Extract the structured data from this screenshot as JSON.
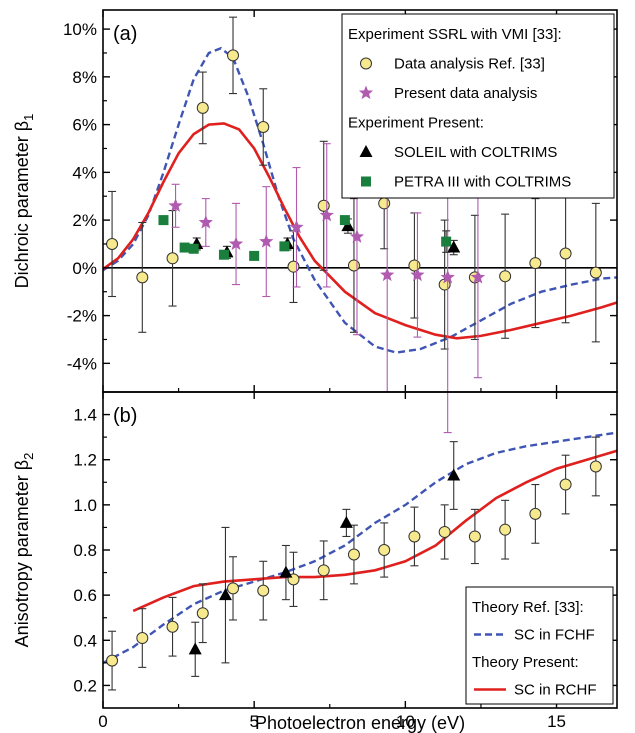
{
  "chart_data": [
    {
      "id": "panel_a",
      "type": "line",
      "panel_label": "(a)",
      "ylabel": "Dichroic parameter β₁",
      "ylabel_main": "Dichroic parameter β",
      "ylabel_sub": "1",
      "xlim": [
        0,
        17
      ],
      "ylim": [
        -5.2,
        10.8
      ],
      "y_format": "percent",
      "x_ticks": [
        0,
        5,
        10,
        15
      ],
      "y_ticks": [
        -4,
        -2,
        0,
        2,
        4,
        6,
        8,
        10
      ],
      "y_tick_labels": [
        "-4%",
        "-2%",
        "0%",
        "2%",
        "4%",
        "6%",
        "8%",
        "10%"
      ],
      "zero_line": true,
      "legend": {
        "placement": "top-right",
        "entries": [
          {
            "kind": "header",
            "label": "Experiment SSRL with VMI [33]:"
          },
          {
            "kind": "marker",
            "marker": "circle",
            "color": "#f7e98e",
            "label": "Data analysis Ref. [33]"
          },
          {
            "kind": "marker",
            "marker": "star",
            "color": "#b05ab0",
            "label": "Present data analysis"
          },
          {
            "kind": "header",
            "label": "Experiment Present:"
          },
          {
            "kind": "marker",
            "marker": "triangle",
            "color": "#000000",
            "label": "SOLEIL with COLTRIMS"
          },
          {
            "kind": "marker",
            "marker": "square",
            "color": "#1a7f3c",
            "label": "PETRA III with COLTRIMS"
          }
        ]
      },
      "series": [
        {
          "name": "SC in FCHF",
          "style": "dashed",
          "color": "#3f55b3",
          "x": [
            0,
            0.5,
            1,
            1.5,
            2,
            2.5,
            3,
            3.5,
            3.9,
            4.3,
            4.8,
            5.3,
            5.8,
            6.3,
            7,
            8,
            9,
            9.7,
            10.5,
            11.5,
            12.5,
            13.5,
            14.5,
            15.5,
            16.5,
            17
          ],
          "y": [
            -0.1,
            0.3,
            1.0,
            2.2,
            4.0,
            6.0,
            7.9,
            9.0,
            9.2,
            8.8,
            7.2,
            5.2,
            3.0,
            1.2,
            -0.5,
            -2.3,
            -3.3,
            -3.55,
            -3.4,
            -2.9,
            -2.2,
            -1.5,
            -1.0,
            -0.7,
            -0.45,
            -0.4
          ]
        },
        {
          "name": "SC in RCHF",
          "style": "solid",
          "color": "#e0201e",
          "x": [
            0,
            0.5,
            1,
            1.5,
            2,
            2.5,
            3,
            3.5,
            4.0,
            4.5,
            5,
            5.5,
            6,
            6.5,
            7,
            8,
            9,
            10,
            11,
            11.7,
            12.5,
            13.5,
            14.5,
            15.5,
            16.5,
            17
          ],
          "y": [
            -0.05,
            0.4,
            1.2,
            2.3,
            3.6,
            4.8,
            5.6,
            6.0,
            6.05,
            5.8,
            5.0,
            3.8,
            2.5,
            1.3,
            0.3,
            -1.0,
            -1.9,
            -2.4,
            -2.8,
            -2.95,
            -2.85,
            -2.6,
            -2.3,
            -2.0,
            -1.65,
            -1.45
          ]
        }
      ],
      "points": [
        {
          "name": "Data analysis Ref. [33]",
          "marker": "circle",
          "color": "#f7e98e",
          "x": [
            0.3,
            1.3,
            2.3,
            3.3,
            4.3,
            5.3,
            6.3,
            7.3,
            8.3,
            9.3,
            10.3,
            11.3,
            12.3,
            13.3,
            14.3,
            15.3,
            16.3
          ],
          "y": [
            1.0,
            -0.4,
            0.4,
            6.7,
            8.9,
            5.9,
            0.05,
            2.6,
            0.1,
            2.7,
            0.1,
            -0.7,
            -0.4,
            -0.35,
            0.2,
            0.6,
            -0.2
          ],
          "err": [
            2.2,
            2.3,
            2.0,
            1.5,
            1.6,
            1.6,
            1.5,
            2.7,
            2.8,
            1.9,
            2.2,
            2.7,
            2.6,
            2.6,
            2.7,
            2.9,
            2.9
          ]
        },
        {
          "name": "Present data analysis",
          "marker": "star",
          "color": "#b05ab0",
          "x": [
            2.4,
            3.4,
            4.4,
            5.4,
            6.4,
            7.4,
            8.4,
            9.4,
            10.4,
            11.4,
            12.4
          ],
          "y": [
            2.6,
            1.9,
            1.0,
            1.1,
            1.7,
            2.2,
            1.3,
            -0.3,
            -0.3,
            -0.4,
            -0.4
          ],
          "err": [
            0.9,
            1.0,
            1.7,
            2.3,
            2.5,
            3.0,
            4.1,
            4.9,
            2.6,
            6.5,
            4.2
          ]
        },
        {
          "name": "SOLEIL with COLTRIMS",
          "marker": "triangle",
          "color": "#000000",
          "x": [
            3.1,
            4.1,
            6.1,
            8.1,
            11.6
          ],
          "y": [
            1.0,
            0.65,
            1.0,
            1.75,
            0.85
          ],
          "err": [
            0.25,
            0.25,
            0.25,
            0.3,
            0.3
          ]
        },
        {
          "name": "PETRA III with COLTRIMS",
          "marker": "square",
          "color": "#1a7f3c",
          "x": [
            2.0,
            2.7,
            3.0,
            4.0,
            5.0,
            6.0,
            8.0,
            11.35
          ],
          "y": [
            2.0,
            0.85,
            0.8,
            0.55,
            0.5,
            0.9,
            2.0,
            1.1
          ],
          "err": [
            0,
            0,
            0,
            0,
            0,
            0,
            0,
            0.45
          ]
        }
      ]
    },
    {
      "id": "panel_b",
      "type": "line",
      "panel_label": "(b)",
      "ylabel": "Anisotropy parameter β₂",
      "ylabel_main": "Anisotropy parameter β",
      "ylabel_sub": "2",
      "xlabel": "Photoelectron energy (eV)",
      "xlim": [
        0,
        17
      ],
      "ylim": [
        0.1,
        1.5
      ],
      "x_ticks": [
        0,
        5,
        10,
        15
      ],
      "y_ticks": [
        0.2,
        0.4,
        0.6,
        0.8,
        1.0,
        1.2,
        1.4
      ],
      "y_tick_labels": [
        "0.2",
        "0.4",
        "0.6",
        "0.8",
        "1.0",
        "1.2",
        "1.4"
      ],
      "legend": {
        "placement": "bottom-right",
        "entries": [
          {
            "kind": "header",
            "label": "Theory Ref. [33]:"
          },
          {
            "kind": "line",
            "style": "dashed",
            "color": "#3f55b3",
            "label": "SC in FCHF"
          },
          {
            "kind": "header",
            "label": "Theory Present:"
          },
          {
            "kind": "line",
            "style": "solid",
            "color": "#e0201e",
            "label": "SC in RCHF"
          }
        ]
      },
      "series": [
        {
          "name": "SC in FCHF",
          "style": "dashed",
          "color": "#3f55b3",
          "x": [
            0,
            1,
            2,
            3,
            4,
            5,
            6,
            7,
            8,
            9,
            10,
            11,
            12,
            13,
            14,
            15,
            16,
            17
          ],
          "y": [
            0.3,
            0.37,
            0.47,
            0.56,
            0.62,
            0.66,
            0.7,
            0.75,
            0.82,
            0.92,
            1.0,
            1.1,
            1.18,
            1.23,
            1.26,
            1.28,
            1.3,
            1.32
          ]
        },
        {
          "name": "SC in RCHF",
          "style": "solid",
          "color": "#e0201e",
          "x": [
            1.0,
            1.5,
            2,
            3,
            4,
            5,
            6,
            7,
            8,
            9,
            10,
            11,
            12,
            13,
            14,
            15,
            16,
            17
          ],
          "y": [
            0.53,
            0.56,
            0.59,
            0.64,
            0.66,
            0.67,
            0.68,
            0.68,
            0.69,
            0.71,
            0.75,
            0.82,
            0.93,
            1.03,
            1.1,
            1.16,
            1.2,
            1.24
          ]
        }
      ],
      "points": [
        {
          "name": "Data analysis Ref. [33]",
          "marker": "circle",
          "color": "#f7e98e",
          "x": [
            0.3,
            1.3,
            2.3,
            3.3,
            4.3,
            5.3,
            6.3,
            7.3,
            8.3,
            9.3,
            10.3,
            11.3,
            12.3,
            13.3,
            14.3,
            15.3,
            16.3
          ],
          "y": [
            0.31,
            0.41,
            0.46,
            0.52,
            0.63,
            0.62,
            0.67,
            0.71,
            0.78,
            0.8,
            0.86,
            0.88,
            0.86,
            0.89,
            0.96,
            1.09,
            1.17
          ],
          "err": [
            0.13,
            0.13,
            0.13,
            0.13,
            0.14,
            0.13,
            0.12,
            0.13,
            0.13,
            0.12,
            0.13,
            0.12,
            0.12,
            0.13,
            0.13,
            0.13,
            0.13
          ]
        },
        {
          "name": "SOLEIL with COLTRIMS",
          "marker": "triangle",
          "color": "#000000",
          "x": [
            3.05,
            4.05,
            6.05,
            8.05,
            11.6
          ],
          "y": [
            0.36,
            0.6,
            0.7,
            0.92,
            1.13
          ],
          "err": [
            0.12,
            0.3,
            0.12,
            0.06,
            0.15
          ]
        }
      ]
    }
  ]
}
